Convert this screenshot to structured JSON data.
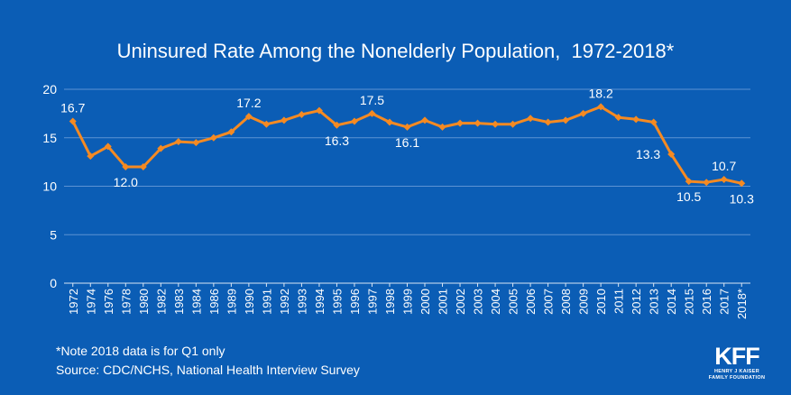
{
  "title": "Uninsured Rate Among the Nonelderly Population,  1972-2018*",
  "note": "*Note 2018 data is for Q1 only",
  "source": "Source: CDC/NCHS, National Health Interview Survey",
  "logo": {
    "letters": "KFF",
    "line1": "HENRY J KAISER",
    "line2": "FAMILY FOUNDATION"
  },
  "colors": {
    "background": "#0B5DB5",
    "line": "#F58A22",
    "text": "#FFFFFF",
    "grid": "#5C93D3"
  },
  "chart_data": {
    "type": "line",
    "x": [
      "1972",
      "1974",
      "1976",
      "1978",
      "1980",
      "1982",
      "1983",
      "1984",
      "1986",
      "1989",
      "1990",
      "1991",
      "1992",
      "1993",
      "1994",
      "1995",
      "1996",
      "1997",
      "1998",
      "1999",
      "2000",
      "2001",
      "2002",
      "2003",
      "2004",
      "2005",
      "2006",
      "2007",
      "2008",
      "2009",
      "2010",
      "2011",
      "2012",
      "2013",
      "2014",
      "2015",
      "2016",
      "2017",
      "2018*"
    ],
    "series": [
      {
        "values": [
          16.7,
          13.1,
          14.1,
          12.0,
          12.0,
          13.9,
          14.6,
          14.5,
          15.0,
          15.6,
          17.2,
          16.4,
          16.8,
          17.4,
          17.8,
          16.3,
          16.7,
          17.5,
          16.6,
          16.1,
          16.8,
          16.1,
          16.5,
          16.5,
          16.4,
          16.4,
          17.0,
          16.6,
          16.8,
          17.5,
          18.2,
          17.1,
          16.9,
          16.6,
          13.3,
          10.5,
          10.4,
          10.7,
          10.3
        ]
      }
    ],
    "data_labels": [
      {
        "index": 0,
        "text": "16.7",
        "pos": "above"
      },
      {
        "index": 3,
        "text": "12.0",
        "pos": "below"
      },
      {
        "index": 10,
        "text": "17.2",
        "pos": "above"
      },
      {
        "index": 15,
        "text": "16.3",
        "pos": "below"
      },
      {
        "index": 17,
        "text": "17.5",
        "pos": "above"
      },
      {
        "index": 19,
        "text": "16.1",
        "pos": "below"
      },
      {
        "index": 30,
        "text": "18.2",
        "pos": "above"
      },
      {
        "index": 34,
        "text": "13.3",
        "pos": "left"
      },
      {
        "index": 35,
        "text": "10.5",
        "pos": "below"
      },
      {
        "index": 37,
        "text": "10.7",
        "pos": "above"
      },
      {
        "index": 38,
        "text": "10.3",
        "pos": "below"
      }
    ],
    "yticks": [
      0,
      5,
      10,
      15,
      20
    ],
    "ylim": [
      0,
      20
    ],
    "grid": "horizontal",
    "legend": "none",
    "xlabel": "",
    "ylabel": ""
  }
}
